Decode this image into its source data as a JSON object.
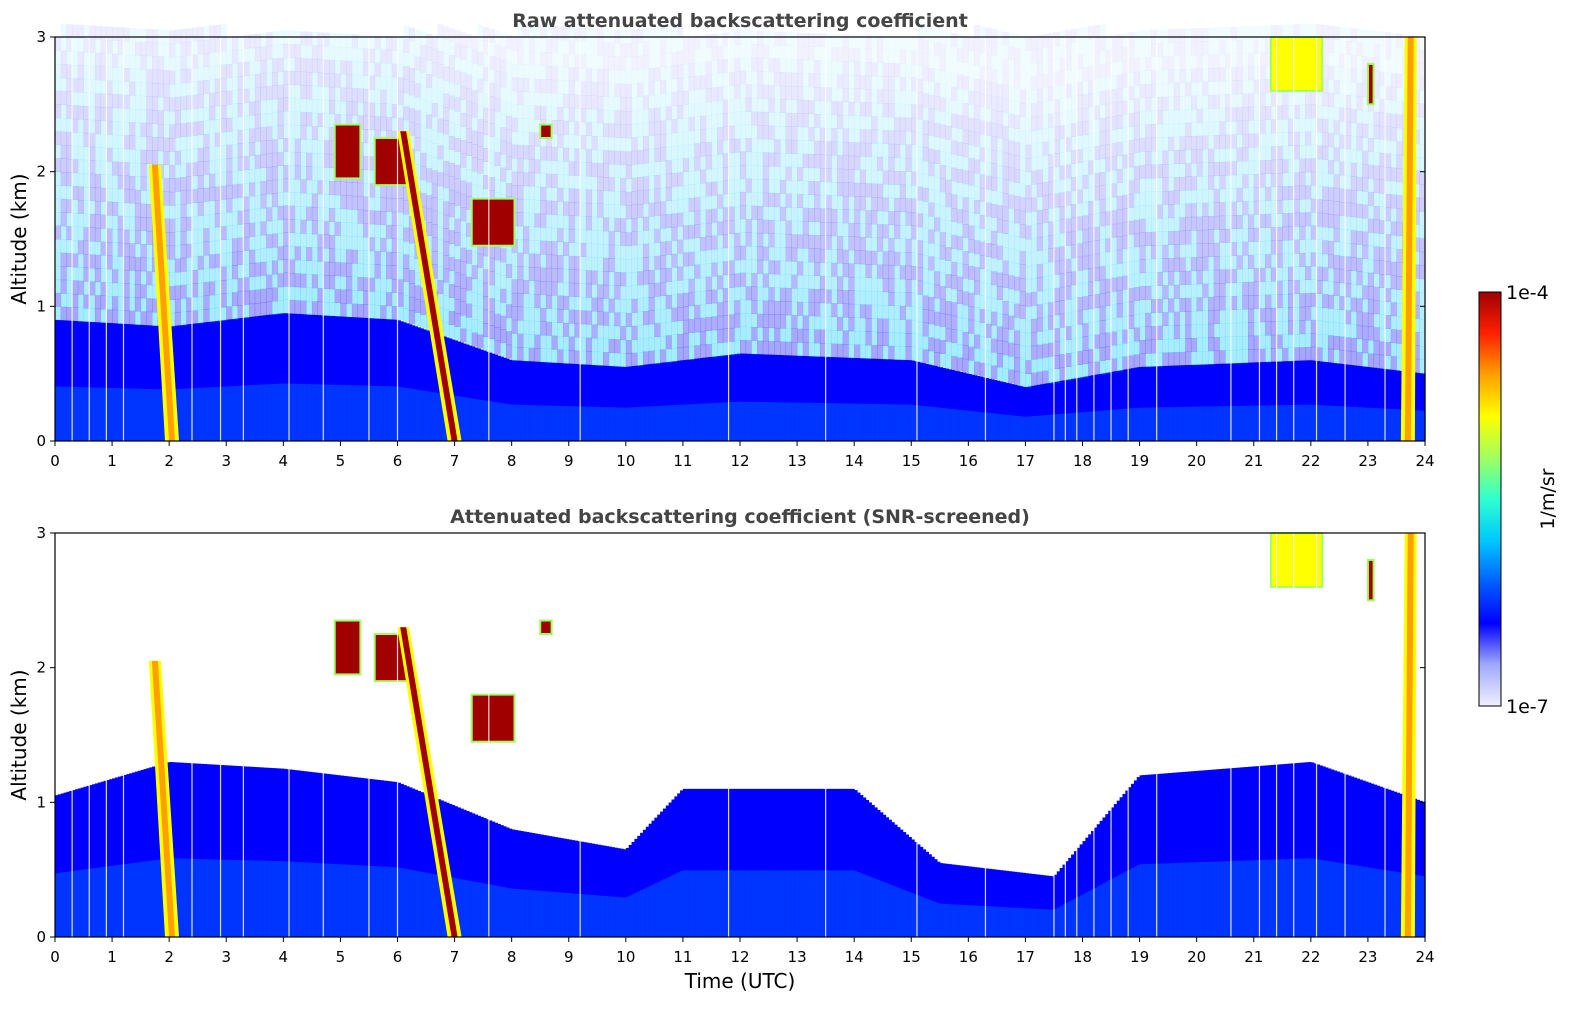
{
  "chart_data": [
    {
      "type": "heatmap",
      "title": "Raw attenuated backscattering coefficient",
      "xlabel": "",
      "ylabel": "Altitude (km)",
      "xlim": [
        0,
        24
      ],
      "ylim": [
        0,
        3
      ],
      "x_ticks": [
        "0",
        "1",
        "2",
        "3",
        "4",
        "5",
        "6",
        "7",
        "8",
        "9",
        "10",
        "11",
        "12",
        "13",
        "14",
        "15",
        "16",
        "17",
        "18",
        "19",
        "20",
        "21",
        "22",
        "23",
        "24"
      ],
      "y_ticks": [
        "0",
        "1",
        "2",
        "3"
      ],
      "noise_above_km": 1.0,
      "boundary_layer_top_km": [
        {
          "time": 0,
          "alt": 0.9
        },
        {
          "time": 2,
          "alt": 0.85
        },
        {
          "time": 4,
          "alt": 0.95
        },
        {
          "time": 6,
          "alt": 0.9
        },
        {
          "time": 8,
          "alt": 0.6
        },
        {
          "time": 10,
          "alt": 0.55
        },
        {
          "time": 12,
          "alt": 0.65
        },
        {
          "time": 15,
          "alt": 0.6
        },
        {
          "time": 17,
          "alt": 0.4
        },
        {
          "time": 19,
          "alt": 0.55
        },
        {
          "time": 22,
          "alt": 0.6
        },
        {
          "time": 24,
          "alt": 0.5
        }
      ],
      "features": [
        {
          "kind": "fall_streak",
          "t_top": 1.75,
          "t_bottom": 2.05,
          "alt_top": 2.05,
          "intensity": "high"
        },
        {
          "kind": "cloud",
          "t0": 4.9,
          "t1": 5.35,
          "alt0": 1.95,
          "alt1": 2.35,
          "intensity": "max"
        },
        {
          "kind": "cloud",
          "t0": 5.6,
          "t1": 6.2,
          "alt0": 1.9,
          "alt1": 2.25,
          "intensity": "max"
        },
        {
          "kind": "fall_streak",
          "t_top": 6.1,
          "t_bottom": 7.0,
          "alt_top": 2.3,
          "intensity": "max"
        },
        {
          "kind": "cloud",
          "t0": 7.3,
          "t1": 8.05,
          "alt0": 1.45,
          "alt1": 1.8,
          "intensity": "max"
        },
        {
          "kind": "cloud",
          "t0": 8.5,
          "t1": 8.7,
          "alt0": 2.25,
          "alt1": 2.35,
          "intensity": "max"
        },
        {
          "kind": "cloud",
          "t0": 21.3,
          "t1": 22.2,
          "alt0": 2.6,
          "alt1": 3.0,
          "intensity": "medium"
        },
        {
          "kind": "cloud",
          "t0": 23.0,
          "t1": 23.1,
          "alt0": 2.5,
          "alt1": 2.8,
          "intensity": "max"
        },
        {
          "kind": "fall_streak",
          "t_top": 23.75,
          "t_bottom": 23.7,
          "alt_top": 3.0,
          "intensity": "high"
        }
      ]
    },
    {
      "type": "heatmap",
      "title": "Attenuated backscattering coefficient (SNR-screened)",
      "xlabel": "Time (UTC)",
      "ylabel": "Altitude (km)",
      "xlim": [
        0,
        24
      ],
      "ylim": [
        0,
        3
      ],
      "x_ticks": [
        "0",
        "1",
        "2",
        "3",
        "4",
        "5",
        "6",
        "7",
        "8",
        "9",
        "10",
        "11",
        "12",
        "13",
        "14",
        "15",
        "16",
        "17",
        "18",
        "19",
        "20",
        "21",
        "22",
        "23",
        "24"
      ],
      "y_ticks": [
        "0",
        "1",
        "2",
        "3"
      ],
      "boundary_layer_top_km": [
        {
          "time": 0,
          "alt": 1.05
        },
        {
          "time": 2,
          "alt": 1.3
        },
        {
          "time": 4,
          "alt": 1.25
        },
        {
          "time": 6,
          "alt": 1.15
        },
        {
          "time": 8,
          "alt": 0.8
        },
        {
          "time": 10,
          "alt": 0.65
        },
        {
          "time": 11,
          "alt": 1.1
        },
        {
          "time": 14,
          "alt": 1.1
        },
        {
          "time": 15.5,
          "alt": 0.55
        },
        {
          "time": 17.5,
          "alt": 0.45
        },
        {
          "time": 19,
          "alt": 1.2
        },
        {
          "time": 22,
          "alt": 1.3
        },
        {
          "time": 24,
          "alt": 1.0
        }
      ],
      "features": [
        {
          "kind": "fall_streak",
          "t_top": 1.75,
          "t_bottom": 2.05,
          "alt_top": 2.05,
          "intensity": "high"
        },
        {
          "kind": "cloud",
          "t0": 4.9,
          "t1": 5.35,
          "alt0": 1.95,
          "alt1": 2.35,
          "intensity": "max"
        },
        {
          "kind": "cloud",
          "t0": 5.6,
          "t1": 6.2,
          "alt0": 1.9,
          "alt1": 2.25,
          "intensity": "max"
        },
        {
          "kind": "fall_streak",
          "t_top": 6.1,
          "t_bottom": 7.0,
          "alt_top": 2.3,
          "intensity": "max"
        },
        {
          "kind": "cloud",
          "t0": 7.3,
          "t1": 8.05,
          "alt0": 1.45,
          "alt1": 1.8,
          "intensity": "max"
        },
        {
          "kind": "cloud",
          "t0": 8.5,
          "t1": 8.7,
          "alt0": 2.25,
          "alt1": 2.35,
          "intensity": "max"
        },
        {
          "kind": "cloud",
          "t0": 21.3,
          "t1": 22.2,
          "alt0": 2.6,
          "alt1": 3.0,
          "intensity": "medium"
        },
        {
          "kind": "cloud",
          "t0": 23.0,
          "t1": 23.1,
          "alt0": 2.5,
          "alt1": 2.8,
          "intensity": "max"
        },
        {
          "kind": "fall_streak",
          "t_top": 23.75,
          "t_bottom": 23.7,
          "alt_top": 3.0,
          "intensity": "high"
        }
      ]
    }
  ],
  "colorbar": {
    "min_label": "1e-7",
    "max_label": "1e-4",
    "unit_label": "1/m/sr",
    "scale": "log",
    "colormap": [
      "#f0f0ff",
      "#9fa8ff",
      "#0000ff",
      "#0060ff",
      "#00c8ff",
      "#30ffcf",
      "#a0ff60",
      "#ffff00",
      "#ffa000",
      "#ff2000",
      "#a00000"
    ]
  }
}
